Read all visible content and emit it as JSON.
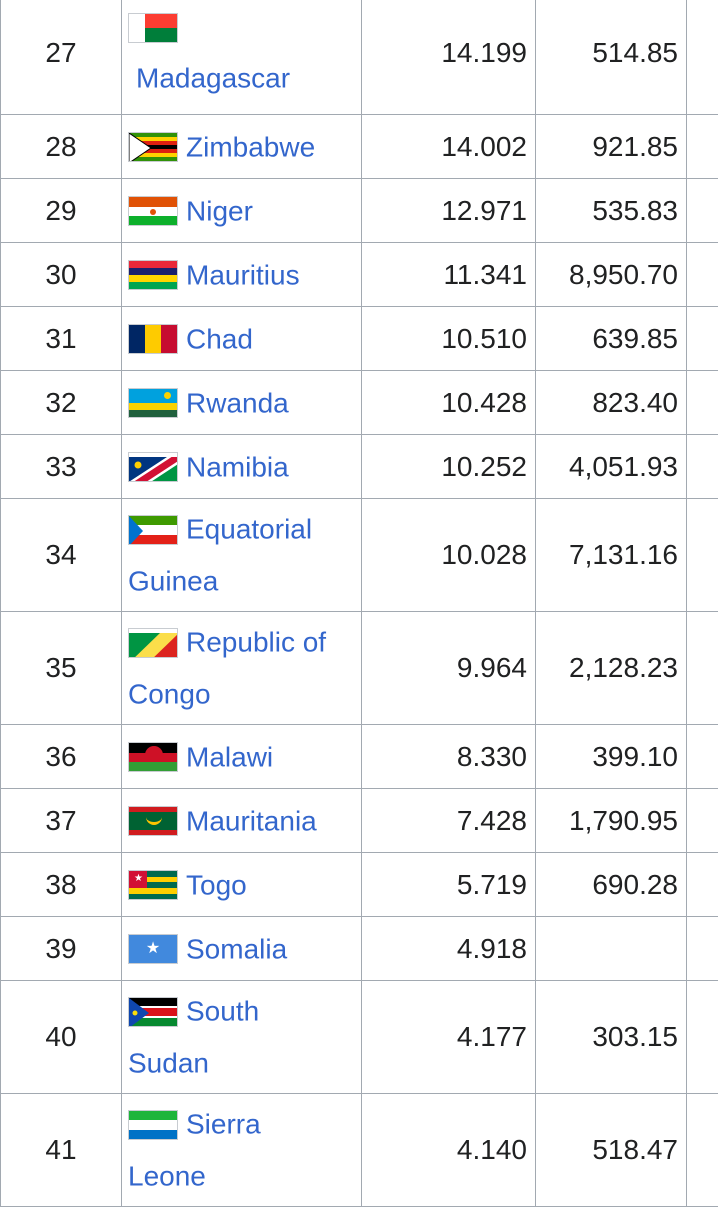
{
  "table": {
    "rows": [
      {
        "rank": "27",
        "country": "Madagascar",
        "flag": "flag-madagascar",
        "gdp": "14.199",
        "per_capita": "514.85",
        "h": 124,
        "wrap": "under"
      },
      {
        "rank": "28",
        "country": "Zimbabwe",
        "flag": "flag-zimbabwe",
        "gdp": "14.002",
        "per_capita": "921.85",
        "h": 64
      },
      {
        "rank": "29",
        "country": "Niger",
        "flag": "flag-niger",
        "gdp": "12.971",
        "per_capita": "535.83",
        "h": 64
      },
      {
        "rank": "30",
        "country": "Mauritius",
        "flag": "flag-mauritius",
        "gdp": "11.341",
        "per_capita": "8,950.70",
        "h": 64
      },
      {
        "rank": "31",
        "country": "Chad",
        "flag": "flag-chad",
        "gdp": "10.510",
        "per_capita": "639.85",
        "h": 64
      },
      {
        "rank": "32",
        "country": "Rwanda",
        "flag": "flag-rwanda",
        "gdp": "10.428",
        "per_capita": "823.40",
        "h": 64
      },
      {
        "rank": "33",
        "country": "Namibia",
        "flag": "flag-namibia",
        "gdp": "10.252",
        "per_capita": "4,051.93",
        "h": 64
      },
      {
        "rank": "34",
        "country": "Equatorial",
        "country2": "Guinea",
        "flag": "flag-equatorial-guinea",
        "gdp": "10.028",
        "per_capita": "7,131.16",
        "h": 113
      },
      {
        "rank": "35",
        "country": "Republic of",
        "country2": "Congo",
        "flag": "flag-republic-of-congo",
        "gdp": "9.964",
        "per_capita": "2,128.23",
        "h": 113
      },
      {
        "rank": "36",
        "country": "Malawi",
        "flag": "flag-malawi",
        "gdp": "8.330",
        "per_capita": "399.10",
        "h": 64
      },
      {
        "rank": "37",
        "country": "Mauritania",
        "flag": "flag-mauritania",
        "gdp": "7.428",
        "per_capita": "1,790.95",
        "h": 64
      },
      {
        "rank": "38",
        "country": "Togo",
        "flag": "flag-togo",
        "gdp": "5.719",
        "per_capita": "690.28",
        "h": 64
      },
      {
        "rank": "39",
        "country": "Somalia",
        "flag": "flag-somalia",
        "gdp": "4.918",
        "per_capita": "",
        "h": 64
      },
      {
        "rank": "40",
        "country": "South",
        "country2": "Sudan",
        "flag": "flag-south-sudan",
        "gdp": "4.177",
        "per_capita": "303.15",
        "h": 113
      },
      {
        "rank": "41",
        "country": "Sierra",
        "country2": "Leone",
        "flag": "flag-sierra-leone",
        "gdp": "4.140",
        "per_capita": "518.47",
        "h": 113
      }
    ]
  },
  "flag_colors": {
    "madagascar": [
      "#ffffff",
      "#fc3d32",
      "#007e3a"
    ],
    "zimbabwe": [
      "#319208",
      "#ffd200",
      "#de2010",
      "#000000"
    ],
    "niger": [
      "#e05206",
      "#ffffff",
      "#0db02b"
    ],
    "mauritius": [
      "#ea2839",
      "#1a206d",
      "#ffd500",
      "#00a551"
    ],
    "chad": [
      "#002664",
      "#fecb00",
      "#c60c30"
    ],
    "rwanda": [
      "#00a1de",
      "#fad201",
      "#20603d"
    ],
    "namibia": [
      "#003580",
      "#009543",
      "#d21034",
      "#ffce00"
    ],
    "equatorial_guinea": [
      "#3e9a00",
      "#ffffff",
      "#e32118",
      "#0073ce"
    ],
    "republic_of_congo": [
      "#009543",
      "#fbde4a",
      "#dc241f"
    ],
    "malawi": [
      "#000000",
      "#ce1126",
      "#339e35"
    ],
    "mauritania": [
      "#006233",
      "#ffc400",
      "#d01c1f"
    ],
    "togo": [
      "#006a4e",
      "#ffce00",
      "#d21034"
    ],
    "somalia": [
      "#4189dd",
      "#ffffff"
    ],
    "south_sudan": [
      "#000000",
      "#da121a",
      "#078930",
      "#0f47af",
      "#fcdd09"
    ],
    "sierra_leone": [
      "#1eb53a",
      "#ffffff",
      "#0072c6"
    ]
  }
}
